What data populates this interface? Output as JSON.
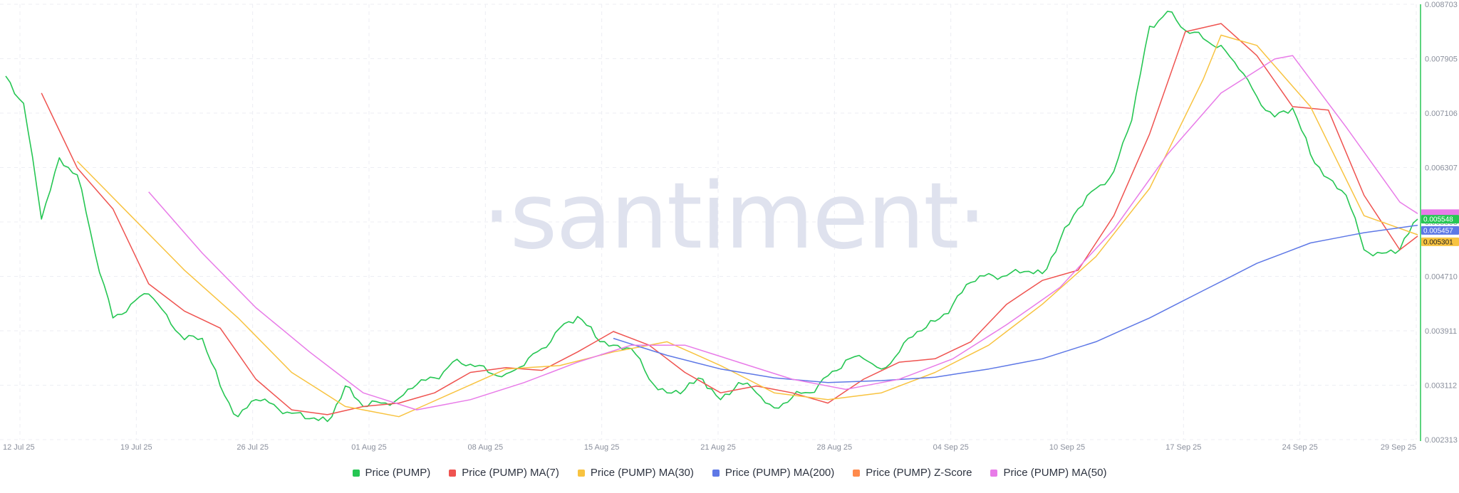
{
  "watermark": "·santiment·",
  "legend": [
    {
      "label": "Price (PUMP)",
      "color": "#26c653"
    },
    {
      "label": "Price (PUMP) MA(7)",
      "color": "#ef5350"
    },
    {
      "label": "Price (PUMP) MA(30)",
      "color": "#f8c340"
    },
    {
      "label": "Price (PUMP) MA(200)",
      "color": "#5e78e6"
    },
    {
      "label": "Price (PUMP) Z-Score",
      "color": "#ff8a4c"
    },
    {
      "label": "Price (PUMP) MA(50)",
      "color": "#e87be8"
    }
  ],
  "chart_data": {
    "type": "line",
    "x_tick_labels": [
      "12 Jul 25",
      "19 Jul 25",
      "26 Jul 25",
      "01 Aug 25",
      "08 Aug 25",
      "15 Aug 25",
      "21 Aug 25",
      "28 Aug 25",
      "04 Sep 25",
      "10 Sep 25",
      "17 Sep 25",
      "24 Sep 25",
      "29 Sep 25"
    ],
    "y_tick_labels": [
      "0.008703",
      "0.007905",
      "0.007106",
      "0.006307",
      "0.005508",
      "0.004710",
      "0.003911",
      "0.003112",
      "0.002313"
    ],
    "y_range": [
      0.002313,
      0.008703
    ],
    "x_range": [
      "2025-07-12",
      "2025-09-29"
    ],
    "grid": true,
    "legend_position": "bottom",
    "last_value_labels": [
      {
        "value": "0.005548",
        "color": "#26c653"
      },
      {
        "value": "0.005457",
        "color": "#5e78e6"
      },
      {
        "value": "0.005301",
        "color": "#f8c340"
      }
    ],
    "series": [
      {
        "name": "Price (PUMP)",
        "color": "#26c653",
        "x": [
          "2025-07-12",
          "2025-07-13",
          "2025-07-14",
          "2025-07-15",
          "2025-07-16",
          "2025-07-17",
          "2025-07-18",
          "2025-07-19",
          "2025-07-20",
          "2025-07-21",
          "2025-07-22",
          "2025-07-23",
          "2025-07-24",
          "2025-07-25",
          "2025-07-26",
          "2025-07-27",
          "2025-07-28",
          "2025-07-29",
          "2025-07-30",
          "2025-07-31",
          "2025-08-01",
          "2025-08-02",
          "2025-08-03",
          "2025-08-04",
          "2025-08-05",
          "2025-08-06",
          "2025-08-07",
          "2025-08-08",
          "2025-08-09",
          "2025-08-10",
          "2025-08-11",
          "2025-08-12",
          "2025-08-13",
          "2025-08-14",
          "2025-08-15",
          "2025-08-16",
          "2025-08-17",
          "2025-08-18",
          "2025-08-19",
          "2025-08-20",
          "2025-08-21",
          "2025-08-22",
          "2025-08-23",
          "2025-08-24",
          "2025-08-25",
          "2025-08-26",
          "2025-08-27",
          "2025-08-28",
          "2025-08-29",
          "2025-08-30",
          "2025-08-31",
          "2025-09-01",
          "2025-09-02",
          "2025-09-03",
          "2025-09-04",
          "2025-09-05",
          "2025-09-06",
          "2025-09-07",
          "2025-09-08",
          "2025-09-09",
          "2025-09-10",
          "2025-09-11",
          "2025-09-12",
          "2025-09-13",
          "2025-09-14",
          "2025-09-15",
          "2025-09-16",
          "2025-09-17",
          "2025-09-18",
          "2025-09-19",
          "2025-09-20",
          "2025-09-21",
          "2025-09-22",
          "2025-09-23",
          "2025-09-24",
          "2025-09-25",
          "2025-09-26",
          "2025-09-27",
          "2025-09-28",
          "2025-09-29"
        ],
        "values": [
          0.00765,
          0.00725,
          0.00555,
          0.00645,
          0.0062,
          0.00505,
          0.0041,
          0.0043,
          0.00445,
          0.00415,
          0.00378,
          0.0038,
          0.0031,
          0.00265,
          0.0029,
          0.00283,
          0.0027,
          0.00262,
          0.00258,
          0.0031,
          0.0028,
          0.00285,
          0.00292,
          0.00312,
          0.00322,
          0.00345,
          0.00342,
          0.0033,
          0.00328,
          0.0034,
          0.00365,
          0.00395,
          0.00412,
          0.00382,
          0.0037,
          0.00365,
          0.0032,
          0.003,
          0.00305,
          0.0032,
          0.0029,
          0.00315,
          0.003,
          0.00278,
          0.00293,
          0.003,
          0.00325,
          0.00348,
          0.0035,
          0.00335,
          0.0036,
          0.0039,
          0.00405,
          0.0043,
          0.00462,
          0.00475,
          0.00472,
          0.00478,
          0.00475,
          0.00525,
          0.0057,
          0.006,
          0.00625,
          0.007,
          0.00838,
          0.0086,
          0.00832,
          0.0082,
          0.0081,
          0.00775,
          0.00735,
          0.00705,
          0.00718,
          0.0065,
          0.00615,
          0.0059,
          0.0051,
          0.00505,
          0.0051,
          0.00555
        ]
      },
      {
        "name": "Price (PUMP) MA(7)",
        "color": "#ef5350",
        "x": [
          "2025-07-14",
          "2025-07-16",
          "2025-07-18",
          "2025-07-20",
          "2025-07-22",
          "2025-07-24",
          "2025-07-26",
          "2025-07-28",
          "2025-07-30",
          "2025-08-01",
          "2025-08-03",
          "2025-08-05",
          "2025-08-07",
          "2025-08-09",
          "2025-08-11",
          "2025-08-13",
          "2025-08-15",
          "2025-08-17",
          "2025-08-19",
          "2025-08-21",
          "2025-08-23",
          "2025-08-25",
          "2025-08-27",
          "2025-08-29",
          "2025-08-31",
          "2025-09-02",
          "2025-09-04",
          "2025-09-06",
          "2025-09-08",
          "2025-09-10",
          "2025-09-12",
          "2025-09-14",
          "2025-09-16",
          "2025-09-18",
          "2025-09-20",
          "2025-09-22",
          "2025-09-24",
          "2025-09-26",
          "2025-09-28",
          "2025-09-29"
        ],
        "values": [
          0.0074,
          0.0063,
          0.0057,
          0.0046,
          0.0042,
          0.00395,
          0.0032,
          0.00275,
          0.00268,
          0.0028,
          0.00285,
          0.003,
          0.0033,
          0.00337,
          0.00333,
          0.0036,
          0.0039,
          0.0037,
          0.0033,
          0.003,
          0.0031,
          0.003,
          0.00285,
          0.0032,
          0.00345,
          0.0035,
          0.00375,
          0.0043,
          0.00465,
          0.0048,
          0.0056,
          0.0068,
          0.0083,
          0.00842,
          0.00795,
          0.0072,
          0.00715,
          0.0059,
          0.0051,
          0.0053
        ]
      },
      {
        "name": "Price (PUMP) MA(30)",
        "color": "#f8c340",
        "x": [
          "2025-07-16",
          "2025-07-19",
          "2025-07-22",
          "2025-07-25",
          "2025-07-28",
          "2025-07-31",
          "2025-08-03",
          "2025-08-06",
          "2025-08-09",
          "2025-08-12",
          "2025-08-15",
          "2025-08-18",
          "2025-08-21",
          "2025-08-24",
          "2025-08-27",
          "2025-08-30",
          "2025-09-02",
          "2025-09-05",
          "2025-09-08",
          "2025-09-11",
          "2025-09-14",
          "2025-09-17",
          "2025-09-18",
          "2025-09-20",
          "2025-09-23",
          "2025-09-26",
          "2025-09-29"
        ],
        "values": [
          0.0064,
          0.0056,
          0.0048,
          0.0041,
          0.0033,
          0.0028,
          0.00265,
          0.003,
          0.00335,
          0.0034,
          0.0036,
          0.00375,
          0.0034,
          0.003,
          0.0029,
          0.003,
          0.0033,
          0.0037,
          0.0043,
          0.005,
          0.006,
          0.0076,
          0.00825,
          0.0081,
          0.0072,
          0.0056,
          0.00532
        ]
      },
      {
        "name": "Price (PUMP) MA(200)",
        "color": "#5e78e6",
        "x": [
          "2025-08-15",
          "2025-08-18",
          "2025-08-21",
          "2025-08-24",
          "2025-08-27",
          "2025-08-30",
          "2025-09-02",
          "2025-09-05",
          "2025-09-08",
          "2025-09-11",
          "2025-09-14",
          "2025-09-17",
          "2025-09-20",
          "2025-09-23",
          "2025-09-26",
          "2025-09-29"
        ],
        "values": [
          0.0038,
          0.00355,
          0.00335,
          0.00322,
          0.00315,
          0.00318,
          0.00323,
          0.00335,
          0.0035,
          0.00375,
          0.0041,
          0.0045,
          0.0049,
          0.0052,
          0.00535,
          0.00546
        ]
      },
      {
        "name": "Price (PUMP) MA(50)",
        "color": "#e87be8",
        "x": [
          "2025-07-20",
          "2025-07-23",
          "2025-07-26",
          "2025-07-29",
          "2025-08-01",
          "2025-08-04",
          "2025-08-07",
          "2025-08-10",
          "2025-08-13",
          "2025-08-16",
          "2025-08-19",
          "2025-08-22",
          "2025-08-25",
          "2025-08-28",
          "2025-08-31",
          "2025-09-03",
          "2025-09-06",
          "2025-09-09",
          "2025-09-12",
          "2025-09-15",
          "2025-09-18",
          "2025-09-21",
          "2025-09-22",
          "2025-09-25",
          "2025-09-28",
          "2025-09-29"
        ],
        "values": [
          0.00595,
          0.00505,
          0.00425,
          0.0036,
          0.003,
          0.00275,
          0.0029,
          0.00315,
          0.00345,
          0.0037,
          0.0037,
          0.00345,
          0.0032,
          0.00305,
          0.0032,
          0.0035,
          0.004,
          0.00455,
          0.0054,
          0.0065,
          0.0074,
          0.0079,
          0.00795,
          0.0069,
          0.0058,
          0.00563
        ]
      }
    ]
  }
}
